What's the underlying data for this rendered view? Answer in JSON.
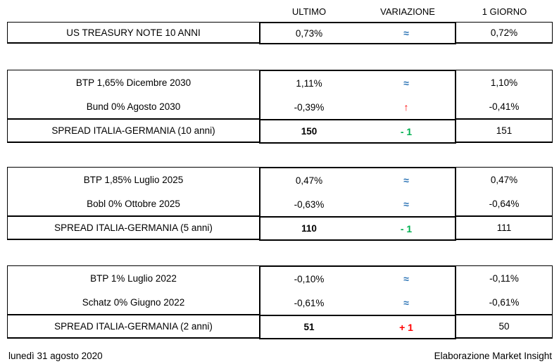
{
  "header": {
    "columns": [
      "ULTIMO",
      "VARIAZIONE",
      "1 GIORNO"
    ]
  },
  "sections": [
    {
      "name": "us-treasury",
      "rows": [
        {
          "label": "US TREASURY NOTE 10 ANNI",
          "ultimo": "0,73%",
          "variazione": "≈",
          "direction": "stable",
          "giorno": "0,72%"
        }
      ]
    },
    {
      "name": "spread-10-anni",
      "rows": [
        {
          "label": "BTP 1,65% Dicembre 2030",
          "ultimo": "1,11%",
          "variazione": "≈",
          "direction": "stable",
          "giorno": "1,10%"
        },
        {
          "label": "Bund 0% Agosto 2030",
          "ultimo": "-0,39%",
          "variazione": "↑",
          "direction": "up",
          "giorno": "-0,41%"
        },
        {
          "label": "SPREAD ITALIA-GERMANIA (10 anni)",
          "ultimo": "150",
          "variazione": "- 1",
          "direction": "down",
          "giorno": "151"
        }
      ]
    },
    {
      "name": "spread-5-anni",
      "rows": [
        {
          "label": "BTP 1,85% Luglio 2025",
          "ultimo": "0,47%",
          "variazione": "≈",
          "direction": "stable",
          "giorno": "0,47%"
        },
        {
          "label": "Bobl 0% Ottobre 2025",
          "ultimo": "-0,63%",
          "variazione": "≈",
          "direction": "stable",
          "giorno": "-0,64%"
        },
        {
          "label": "SPREAD ITALIA-GERMANIA (5 anni)",
          "ultimo": "110",
          "variazione": "- 1",
          "direction": "down",
          "giorno": "111"
        }
      ]
    },
    {
      "name": "spread-2-anni",
      "rows": [
        {
          "label": "BTP 1% Luglio 2022",
          "ultimo": "-0,10%",
          "variazione": "≈",
          "direction": "stable",
          "giorno": "-0,11%"
        },
        {
          "label": "Schatz 0% Giugno 2022",
          "ultimo": "-0,61%",
          "variazione": "≈",
          "direction": "stable",
          "giorno": "-0,61%"
        },
        {
          "label": "SPREAD ITALIA-GERMANIA (2 anni)",
          "ultimo": "51",
          "variazione": "+ 1",
          "direction": "up",
          "giorno": "50"
        }
      ]
    }
  ],
  "footer": {
    "date": "lunedì 31 agosto 2020",
    "credit": "Elaborazione Market Insight"
  },
  "colors": {
    "stable_blue": "#2E75B6",
    "up_red": "#FF0000",
    "down_green": "#00B050",
    "border_black": "#000000"
  },
  "chart_data": {
    "type": "table",
    "columns": [
      "",
      "ULTIMO",
      "VARIAZIONE",
      "1 GIORNO"
    ],
    "rows": [
      [
        "US TREASURY NOTE 10 ANNI",
        "0,73%",
        "≈",
        "0,72%"
      ],
      [
        "BTP 1,65% Dicembre 2030",
        "1,11%",
        "≈",
        "1,10%"
      ],
      [
        "Bund 0% Agosto 2030",
        "-0,39%",
        "↑",
        "-0,41%"
      ],
      [
        "SPREAD ITALIA-GERMANIA (10 anni)",
        "150",
        "- 1",
        "151"
      ],
      [
        "BTP 1,85% Luglio 2025",
        "0,47%",
        "≈",
        "0,47%"
      ],
      [
        "Bobl 0% Ottobre 2025",
        "-0,63%",
        "≈",
        "-0,64%"
      ],
      [
        "SPREAD ITALIA-GERMANIA (5 anni)",
        "110",
        "- 1",
        "111"
      ],
      [
        "BTP 1% Luglio 2022",
        "-0,10%",
        "≈",
        "-0,11%"
      ],
      [
        "Schatz 0% Giugno 2022",
        "-0,61%",
        "≈",
        "-0,61%"
      ],
      [
        "SPREAD ITALIA-GERMANIA (2 anni)",
        "51",
        "+ 1",
        "50"
      ]
    ],
    "title": "",
    "notes": "Spread rows show ULTIMO values in bold; VARIAZIONE color coding: blue ≈ stable, red ↑/+1 rise, green -1 fall"
  }
}
